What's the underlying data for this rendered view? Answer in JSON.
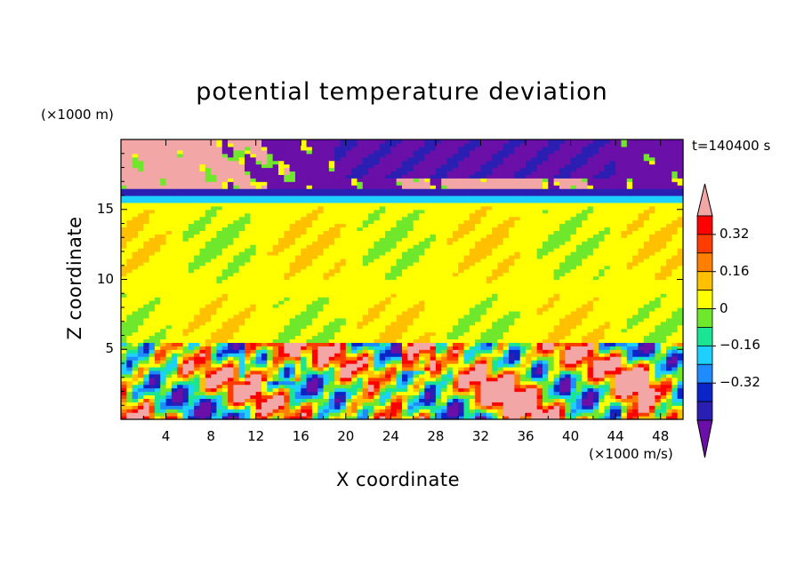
{
  "chart_data": {
    "type": "heatmap",
    "title": "potential temperature deviation",
    "xlabel": "X coordinate",
    "ylabel": "Z coordinate",
    "x_unit": "(×1000 m/s)",
    "y_unit": "(×1000 m)",
    "time_label": "t=140400 s",
    "xlim": [
      0,
      50
    ],
    "ylim": [
      0,
      20
    ],
    "x_ticks": [
      "4",
      "8",
      "12",
      "16",
      "20",
      "24",
      "28",
      "32",
      "36",
      "40",
      "44",
      "48"
    ],
    "y_ticks": [
      "5",
      "10",
      "15"
    ],
    "colorbar": {
      "levels": [
        -0.48,
        -0.4,
        -0.32,
        -0.24,
        -0.16,
        -0.08,
        0,
        0.08,
        0.16,
        0.24,
        0.32,
        0.4
      ],
      "labels": [
        "0.32",
        "0.16",
        "0",
        "−0.16",
        "−0.32"
      ],
      "colors": [
        "#6a0fa8",
        "#2b1fb3",
        "#0a24c7",
        "#1e8cff",
        "#1ed0ff",
        "#19e594",
        "#6fe82c",
        "#ffff00",
        "#ffc000",
        "#ff7f00",
        "#ff3c00",
        "#ff0000",
        "#f3a6a6"
      ],
      "extend": "both"
    },
    "layers": [
      {
        "z_range": [
          16.5,
          20
        ],
        "description": "upper layer alternating strongly negative and strongly positive"
      },
      {
        "z_range": [
          15.5,
          16.5
        ],
        "value": -0.28
      },
      {
        "z_range": [
          5.5,
          15.5
        ],
        "value": 0.0
      },
      {
        "z_range": [
          0,
          5.5
        ],
        "description": "turbulent mixed region, values from below -0.48 to above 0.40"
      }
    ]
  }
}
